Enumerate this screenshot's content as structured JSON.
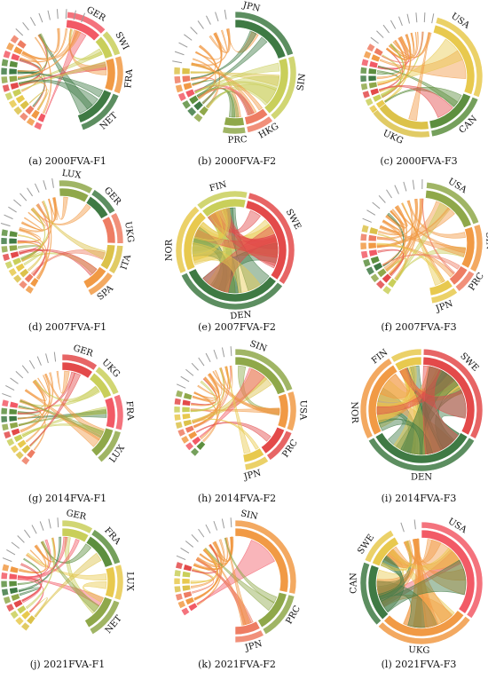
{
  "palette": [
    "#f25a66",
    "#8fa84a",
    "#e8c94e",
    "#f19a45",
    "#3f7a44",
    "#c9cf5a",
    "#ee7d63",
    "#5d8f3f",
    "#e34a4a",
    "#dcc24a"
  ],
  "panels": [
    {
      "caption": "(a) 2000FVA-F1",
      "labels": [
        "GER",
        "SWI",
        "FRA",
        "NET"
      ]
    },
    {
      "caption": "(b) 2000FVA-F2",
      "labels": [
        "JPN",
        "SIN",
        "HKG",
        "PRC"
      ]
    },
    {
      "caption": "(c) 2000FVA-F3",
      "labels": [
        "USA",
        "CAN",
        "UKG"
      ]
    },
    {
      "caption": "(d) 2007FVA-F1",
      "labels": [
        "LUX",
        "GER",
        "UKG",
        "ITA",
        "SPA"
      ]
    },
    {
      "caption": "(e) 2007FVA-F2",
      "labels": [
        "FIN",
        "SWE",
        "DEN",
        "NOR"
      ]
    },
    {
      "caption": "(f) 2007FVA-F3",
      "labels": [
        "USA",
        "SIN",
        "PRC",
        "JPN"
      ]
    },
    {
      "caption": "(g) 2014FVA-F1",
      "labels": [
        "GER",
        "UKG",
        "FRA",
        "LUX"
      ]
    },
    {
      "caption": "(h) 2014FVA-F2",
      "labels": [
        "SIN",
        "USA",
        "PRC",
        "JPN"
      ]
    },
    {
      "caption": "(i) 2014FVA-F3",
      "labels": [
        "FIN",
        "SWE",
        "DEN",
        "NOR"
      ]
    },
    {
      "caption": "(j) 2021FVA-F1",
      "labels": [
        "GER",
        "FRA",
        "LUX",
        "NET"
      ]
    },
    {
      "caption": "(k) 2021FVA-F2",
      "labels": [
        "SIN",
        "PRC",
        "JPN"
      ]
    },
    {
      "caption": "(l) 2021FVA-F3",
      "labels": [
        "USA",
        "UKG",
        "CAN",
        "SWE"
      ]
    }
  ]
}
